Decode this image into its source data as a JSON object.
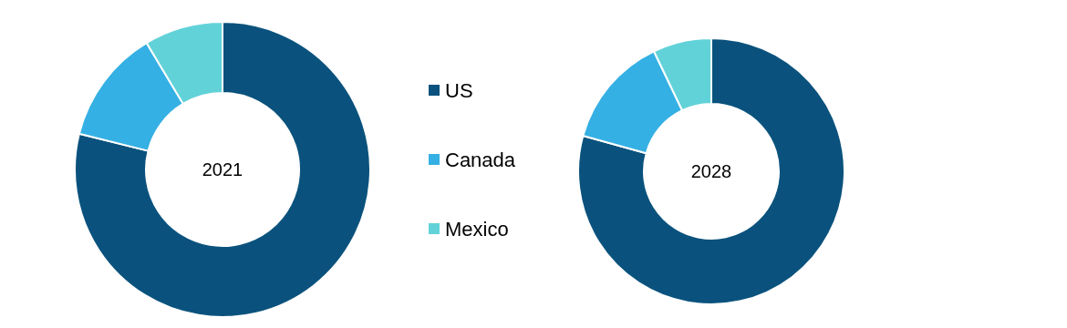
{
  "chart_data": {
    "type": "donut",
    "categories": [
      "US",
      "Canada",
      "Mexico"
    ],
    "colors": [
      "#0a527d",
      "#35b0e4",
      "#62d2d9"
    ],
    "legend": "right",
    "series": [
      {
        "name": "2021",
        "values": [
          78.9,
          12.5,
          8.6
        ]
      },
      {
        "name": "2028",
        "values": [
          79.3,
          13.6,
          7.1
        ]
      }
    ]
  }
}
